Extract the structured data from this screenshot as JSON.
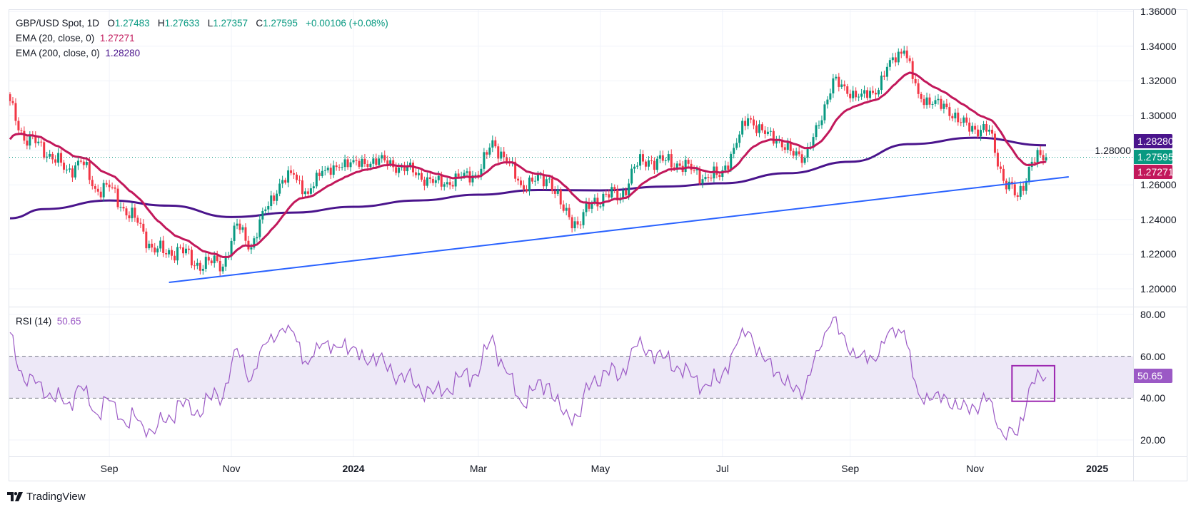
{
  "header": {
    "symbol": "GBP/USD Spot, 1D",
    "open_label": "O",
    "open": "1.27483",
    "high_label": "H",
    "high": "1.27633",
    "low_label": "L",
    "low": "1.27357",
    "close_label": "C",
    "close": "1.27595",
    "change": "+0.00106 (+0.08%)",
    "ema20_label": "EMA (20, close, 0)",
    "ema20_value": "1.27271",
    "ema200_label": "EMA (200, close, 0)",
    "ema200_value": "1.28280",
    "rsi_label": "RSI (14)",
    "rsi_value": "50.65"
  },
  "price_axis": {
    "ticks": [
      "1.36000",
      "1.34000",
      "1.32000",
      "1.30000",
      "1.28000",
      "1.26000",
      "1.24000",
      "1.22000",
      "1.20000"
    ],
    "tags": {
      "ema200": "1.28280",
      "last": "1.27595",
      "ema20": "1.27271"
    }
  },
  "rsi_axis": {
    "ticks": [
      "80.00",
      "60.00",
      "40.00",
      "20.00"
    ],
    "tag": "50.65"
  },
  "time_axis": {
    "ticks": [
      {
        "label": "Sep",
        "date": "2023-09-01",
        "bold": false
      },
      {
        "label": "Nov",
        "date": "2023-11-01",
        "bold": false
      },
      {
        "label": "2024",
        "date": "2024-01-01",
        "bold": true
      },
      {
        "label": "Mar",
        "date": "2024-03-01",
        "bold": false
      },
      {
        "label": "May",
        "date": "2024-05-01",
        "bold": false
      },
      {
        "label": "Jul",
        "date": "2024-07-01",
        "bold": false
      },
      {
        "label": "Sep",
        "date": "2024-09-01",
        "bold": false
      },
      {
        "label": "Nov",
        "date": "2024-11-01",
        "bold": false
      },
      {
        "label": "2025",
        "date": "2025-01-01",
        "bold": true
      }
    ]
  },
  "footer": {
    "brand": "TradingView"
  },
  "colors": {
    "up": "#089981",
    "down": "#f23645",
    "ema20": "#c2185b",
    "ema200": "#4a148c",
    "trendline": "#2962ff",
    "rsi": "#9b59c5",
    "rsi_band": "#ede8f7",
    "annotation_box": "#9c27b0"
  },
  "chart_data": {
    "type": "candlestick",
    "interval": "1D",
    "ylim": [
      1.2,
      1.36
    ],
    "rsi_ylim": [
      10,
      85
    ],
    "rsi_levels": [
      60,
      40
    ],
    "grid": true,
    "weekly_closes": [
      [
        "2023-07-14",
        1.3083
      ],
      [
        "2023-07-21",
        1.2855
      ],
      [
        "2023-07-28",
        1.2849
      ],
      [
        "2023-08-04",
        1.2747
      ],
      [
        "2023-08-11",
        1.2688
      ],
      [
        "2023-08-18",
        1.2734
      ],
      [
        "2023-08-25",
        1.2577
      ],
      [
        "2023-09-01",
        1.2587
      ],
      [
        "2023-09-08",
        1.2464
      ],
      [
        "2023-09-15",
        1.2381
      ],
      [
        "2023-09-22",
        1.2238
      ],
      [
        "2023-09-29",
        1.2199
      ],
      [
        "2023-10-06",
        1.2239
      ],
      [
        "2023-10-13",
        1.2133
      ],
      [
        "2023-10-20",
        1.2163
      ],
      [
        "2023-10-27",
        1.2128
      ],
      [
        "2023-11-03",
        1.2376
      ],
      [
        "2023-11-10",
        1.2238
      ],
      [
        "2023-11-17",
        1.2458
      ],
      [
        "2023-11-24",
        1.2607
      ],
      [
        "2023-12-01",
        1.2659
      ],
      [
        "2023-12-08",
        1.2548
      ],
      [
        "2023-12-15",
        1.268
      ],
      [
        "2023-12-22",
        1.2703
      ],
      [
        "2023-12-29",
        1.273
      ],
      [
        "2024-01-05",
        1.272
      ],
      [
        "2024-01-12",
        1.2752
      ],
      [
        "2024-01-19",
        1.2702
      ],
      [
        "2024-01-26",
        1.2707
      ],
      [
        "2024-02-02",
        1.263
      ],
      [
        "2024-02-09",
        1.2627
      ],
      [
        "2024-02-16",
        1.2599
      ],
      [
        "2024-02-23",
        1.2669
      ],
      [
        "2024-03-01",
        1.2652
      ],
      [
        "2024-03-08",
        1.2857
      ],
      [
        "2024-03-15",
        1.2735
      ],
      [
        "2024-03-22",
        1.2598
      ],
      [
        "2024-03-29",
        1.2623
      ],
      [
        "2024-04-05",
        1.2636
      ],
      [
        "2024-04-12",
        1.245
      ],
      [
        "2024-04-19",
        1.2371
      ],
      [
        "2024-04-26",
        1.2493
      ],
      [
        "2024-05-03",
        1.2546
      ],
      [
        "2024-05-10",
        1.2524
      ],
      [
        "2024-05-17",
        1.2705
      ],
      [
        "2024-05-24",
        1.2741
      ],
      [
        "2024-05-31",
        1.2739
      ],
      [
        "2024-06-07",
        1.2723
      ],
      [
        "2024-06-14",
        1.2686
      ],
      [
        "2024-06-21",
        1.2646
      ],
      [
        "2024-06-28",
        1.2646
      ],
      [
        "2024-07-05",
        1.2813
      ],
      [
        "2024-07-12",
        1.2984
      ],
      [
        "2024-07-19",
        1.2915
      ],
      [
        "2024-07-26",
        1.2856
      ],
      [
        "2024-08-02",
        1.2795
      ],
      [
        "2024-08-09",
        1.2757
      ],
      [
        "2024-08-16",
        1.2945
      ],
      [
        "2024-08-23",
        1.3214
      ],
      [
        "2024-08-30",
        1.3125
      ],
      [
        "2024-09-06",
        1.3126
      ],
      [
        "2024-09-13",
        1.3122
      ],
      [
        "2024-09-20",
        1.332
      ],
      [
        "2024-09-27",
        1.3375
      ],
      [
        "2024-10-04",
        1.3124
      ],
      [
        "2024-10-11",
        1.3066
      ],
      [
        "2024-10-18",
        1.3049
      ],
      [
        "2024-10-25",
        1.2958
      ],
      [
        "2024-11-01",
        1.2919
      ],
      [
        "2024-11-08",
        1.2918
      ],
      [
        "2024-11-15",
        1.2623
      ],
      [
        "2024-11-22",
        1.2531
      ],
      [
        "2024-11-29",
        1.2733
      ],
      [
        "2024-12-06",
        1.27595
      ]
    ],
    "ema200_points": [
      [
        "2023-07-14",
        1.2407
      ],
      [
        "2023-08-01",
        1.246
      ],
      [
        "2023-09-01",
        1.251
      ],
      [
        "2023-10-02",
        1.248
      ],
      [
        "2023-11-01",
        1.2414
      ],
      [
        "2023-12-01",
        1.244
      ],
      [
        "2024-01-01",
        1.2473
      ],
      [
        "2024-02-01",
        1.251
      ],
      [
        "2024-03-01",
        1.2543
      ],
      [
        "2024-04-01",
        1.257
      ],
      [
        "2024-05-01",
        1.2568
      ],
      [
        "2024-06-03",
        1.259
      ],
      [
        "2024-07-01",
        1.2609
      ],
      [
        "2024-08-01",
        1.2667
      ],
      [
        "2024-09-02",
        1.2733
      ],
      [
        "2024-10-01",
        1.2835
      ],
      [
        "2024-11-01",
        1.2872
      ],
      [
        "2024-12-06",
        1.2828
      ]
    ],
    "trendline": {
      "start": [
        "2023-10-02",
        1.2037
      ],
      "end": [
        "2024-12-18",
        1.2646
      ]
    },
    "rsi_box": {
      "start": "2024-11-20",
      "end": "2024-12-11",
      "top": 55.5,
      "bottom": 38.5
    },
    "last": {
      "close": 1.27595,
      "ema20": 1.27271,
      "ema200": 1.2828,
      "rsi": 50.65
    }
  }
}
